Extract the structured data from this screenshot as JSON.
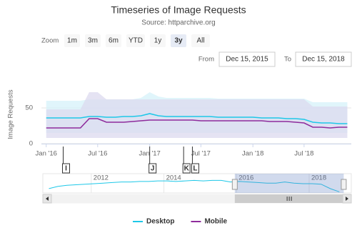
{
  "chart_data": {
    "type": "line",
    "title": "Timeseries of Image Requests",
    "subtitle": "Source: httparchive.org",
    "y_label": "Image Requests",
    "range_selector": {
      "zoom_label": "Zoom",
      "buttons": [
        "1m",
        "3m",
        "6m",
        "YTD",
        "1y",
        "3y",
        "All"
      ],
      "selected": 5,
      "from_label": "From",
      "from": "Dec 15, 2015",
      "to_label": "To",
      "to": "Dec 15, 2018"
    },
    "x": [
      "2016-01",
      "2016-02",
      "2016-03",
      "2016-04",
      "2016-05",
      "2016-06",
      "2016-07",
      "2016-08",
      "2016-09",
      "2016-10",
      "2016-11",
      "2016-12",
      "2017-01",
      "2017-02",
      "2017-03",
      "2017-04",
      "2017-05",
      "2017-06",
      "2017-07",
      "2017-08",
      "2017-09",
      "2017-10",
      "2017-11",
      "2017-12",
      "2018-01",
      "2018-02",
      "2018-03",
      "2018-04",
      "2018-05",
      "2018-06",
      "2018-07",
      "2018-08",
      "2018-09",
      "2018-10",
      "2018-11",
      "2018-12"
    ],
    "xlim": [
      "2015-12-15",
      "2018-12-15"
    ],
    "xticks": [
      {
        "value": "2016-01",
        "label": "Jan '16"
      },
      {
        "value": "2016-07",
        "label": "Jul '16"
      },
      {
        "value": "2017-01",
        "label": "Jan '17"
      },
      {
        "value": "2017-07",
        "label": "Jul '17"
      },
      {
        "value": "2018-01",
        "label": "Jan '18"
      },
      {
        "value": "2018-07",
        "label": "Jul '18"
      }
    ],
    "ylim": [
      0,
      80
    ],
    "yticks": [
      0,
      50
    ],
    "grid": true,
    "series": [
      {
        "name": "Desktop",
        "color": "#1ec8e8",
        "band_color": "#d6f1f9",
        "values": [
          36,
          36,
          36,
          36,
          36,
          38,
          38,
          37,
          37,
          38,
          38,
          39,
          42,
          39,
          38,
          38,
          38,
          38,
          38,
          38,
          37,
          37,
          37,
          37,
          37,
          36,
          36,
          36,
          35,
          35,
          34,
          30,
          29,
          29,
          28,
          28
        ],
        "range_high": [
          60,
          60,
          60,
          60,
          60,
          62,
          62,
          62,
          62,
          62,
          62,
          64,
          72,
          66,
          64,
          64,
          64,
          64,
          64,
          64,
          63,
          63,
          63,
          63,
          63,
          63,
          63,
          63,
          63,
          63,
          63,
          58,
          58,
          58,
          58,
          58
        ],
        "range_low": [
          15,
          15,
          15,
          15,
          15,
          15,
          15,
          15,
          15,
          15,
          15,
          15,
          15,
          15,
          15,
          15,
          15,
          15,
          15,
          15,
          15,
          15,
          15,
          15,
          15,
          15,
          15,
          15,
          15,
          15,
          15,
          15,
          15,
          15,
          15,
          15
        ]
      },
      {
        "name": "Mobile",
        "color": "#8e2c9c",
        "band_color": "#dcd9ef",
        "values": [
          22,
          22,
          22,
          22,
          22,
          35,
          35,
          30,
          30,
          30,
          31,
          32,
          33,
          33,
          33,
          33,
          33,
          33,
          32,
          32,
          32,
          32,
          32,
          32,
          32,
          32,
          31,
          31,
          31,
          30,
          29,
          23,
          23,
          22,
          23,
          23
        ],
        "range_high": [
          48,
          48,
          48,
          48,
          48,
          72,
          72,
          62,
          62,
          62,
          62,
          62,
          62,
          62,
          62,
          62,
          62,
          62,
          62,
          62,
          62,
          62,
          62,
          62,
          62,
          62,
          62,
          62,
          62,
          62,
          62,
          52,
          52,
          52,
          52,
          52
        ],
        "range_low": [
          8,
          8,
          8,
          8,
          8,
          8,
          8,
          8,
          8,
          8,
          8,
          8,
          8,
          8,
          8,
          8,
          8,
          8,
          8,
          8,
          8,
          8,
          8,
          8,
          8,
          8,
          8,
          8,
          8,
          8,
          8,
          8,
          8,
          8,
          8,
          8
        ]
      }
    ],
    "flags": [
      {
        "label": "I",
        "x": "2016-03"
      },
      {
        "label": "J",
        "x": "2017-01"
      },
      {
        "label": "K",
        "x": "2017-05"
      },
      {
        "label": "L",
        "x": "2017-06"
      }
    ],
    "navigator": {
      "x": [
        "2010-11",
        "2011-02",
        "2011-05",
        "2011-08",
        "2011-11",
        "2012-02",
        "2012-05",
        "2012-08",
        "2012-11",
        "2013-02",
        "2013-05",
        "2013-08",
        "2013-11",
        "2014-02",
        "2014-05",
        "2014-08",
        "2014-11",
        "2015-02",
        "2015-05",
        "2015-08",
        "2015-11",
        "2016-02",
        "2016-05",
        "2016-08",
        "2016-11",
        "2017-02",
        "2017-05",
        "2017-08",
        "2017-11",
        "2018-02",
        "2018-05",
        "2018-08",
        "2018-11"
      ],
      "values": [
        28,
        32,
        34,
        35,
        36,
        37,
        38,
        39,
        40,
        40,
        41,
        41,
        42,
        42,
        41,
        42,
        43,
        42,
        43,
        43,
        40,
        41,
        40,
        39,
        38,
        38,
        40,
        38,
        37,
        37,
        36,
        28,
        22
      ],
      "xlim": [
        "2010-09",
        "2019-03"
      ],
      "ylim": [
        20,
        50
      ],
      "xticks": [
        {
          "value": "2012-01",
          "label": "2012"
        },
        {
          "value": "2014-01",
          "label": "2014"
        },
        {
          "value": "2016-01",
          "label": "2016"
        },
        {
          "value": "2018-01",
          "label": "2018"
        }
      ]
    }
  }
}
